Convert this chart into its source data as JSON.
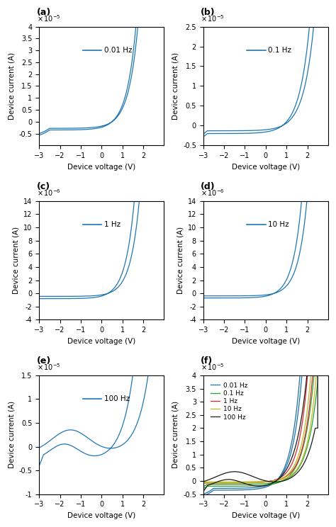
{
  "subplot_labels": [
    "(a)",
    "(b)",
    "(c)",
    "(d)",
    "(e)",
    "(f)"
  ],
  "frequencies": [
    "0.01 Hz",
    "0.1 Hz",
    "1 Hz",
    "10 Hz",
    "100 Hz"
  ],
  "freq_colors": [
    "#1f6fa8",
    "#2ca02c",
    "#d62728",
    "#bcbd22",
    "#1a1a1a"
  ],
  "xlabel": "Device voltage (V)",
  "ylabel": "Device current (A)",
  "xlim": [
    -3,
    3
  ],
  "panel_configs": [
    {
      "ylim": [
        -1e-05,
        4e-05
      ],
      "scale": 1e-05,
      "ytick_vals": [
        -0.5,
        0,
        0.5,
        1.0,
        1.5,
        2.0,
        2.5,
        3.0,
        3.5,
        4.0
      ]
    },
    {
      "ylim": [
        -5e-06,
        2.5e-05
      ],
      "scale": 1e-05,
      "ytick_vals": [
        -0.5,
        0,
        0.5,
        1.0,
        1.5,
        2.0,
        2.5
      ]
    },
    {
      "ylim": [
        -4e-06,
        1.4e-05
      ],
      "scale": 1e-06,
      "ytick_vals": [
        -4,
        -2,
        0,
        2,
        4,
        6,
        8,
        10,
        12,
        14
      ]
    },
    {
      "ylim": [
        -4e-06,
        1.4e-05
      ],
      "scale": 1e-06,
      "ytick_vals": [
        -4,
        -2,
        0,
        2,
        4,
        6,
        8,
        10,
        12,
        14
      ]
    },
    {
      "ylim": [
        -1e-05,
        1.5e-05
      ],
      "scale": 1e-05,
      "ytick_vals": [
        -1.0,
        -0.5,
        0,
        0.5,
        1.0,
        1.5
      ]
    },
    {
      "ylim": [
        -5e-06,
        4e-05
      ],
      "scale": 1e-05,
      "ytick_vals": [
        -0.5,
        0,
        0.5,
        1.0,
        1.5,
        2.0,
        2.5,
        3.0,
        3.5,
        4.0
      ]
    }
  ],
  "bg_color": "#ffffff",
  "line_color_blue": "#1f77b4",
  "panel_freq_labels": [
    "0.01 Hz",
    "0.1 Hz",
    "1 Hz",
    "10 Hz",
    "100 Hz"
  ]
}
